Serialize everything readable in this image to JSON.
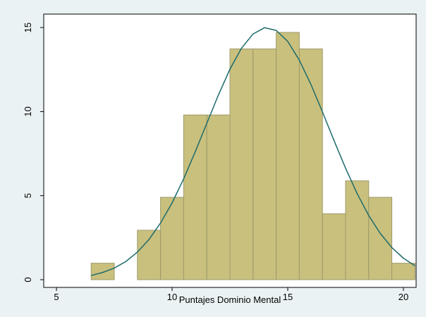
{
  "chart_data": {
    "type": "histogram",
    "x_label": "Puntajes Dominio Mental",
    "bins": [
      6.5,
      7.5,
      8.5,
      9.5,
      10.5,
      11.5,
      12.5,
      13.5,
      14.5,
      15.5,
      16.5,
      17.5,
      18.5,
      19.5,
      20.5
    ],
    "values": [
      0.98,
      0,
      2.94,
      4.9,
      9.8,
      9.8,
      13.73,
      13.73,
      14.71,
      13.73,
      3.92,
      5.88,
      4.9,
      0.98
    ],
    "color": "#c9c07e",
    "edge_color": "#9e9a6a",
    "curve": {
      "color": "#1e6b6b",
      "x": [
        6.5,
        7,
        7.5,
        8,
        8.5,
        9,
        9.5,
        10,
        10.5,
        11,
        11.5,
        12,
        12.5,
        13,
        13.5,
        14,
        14.5,
        15,
        15.5,
        16,
        16.5,
        17,
        17.5,
        18,
        18.5,
        19,
        19.5,
        20,
        20.5
      ],
      "values": [
        0.25,
        0.43,
        0.69,
        1.08,
        1.64,
        2.39,
        3.37,
        4.57,
        6.0,
        7.61,
        9.3,
        10.98,
        12.52,
        13.77,
        14.62,
        14.99,
        14.83,
        14.17,
        13.06,
        11.62,
        9.98,
        8.28,
        6.63,
        5.12,
        3.82,
        2.75,
        1.91,
        1.28,
        0.83
      ]
    },
    "xlim": [
      4.45,
      20.55
    ],
    "ylim": [
      -0.46,
      15.8
    ],
    "xticks": [
      5,
      10,
      15,
      20
    ],
    "yticks": [
      0,
      5,
      10,
      15
    ],
    "grid": false
  }
}
